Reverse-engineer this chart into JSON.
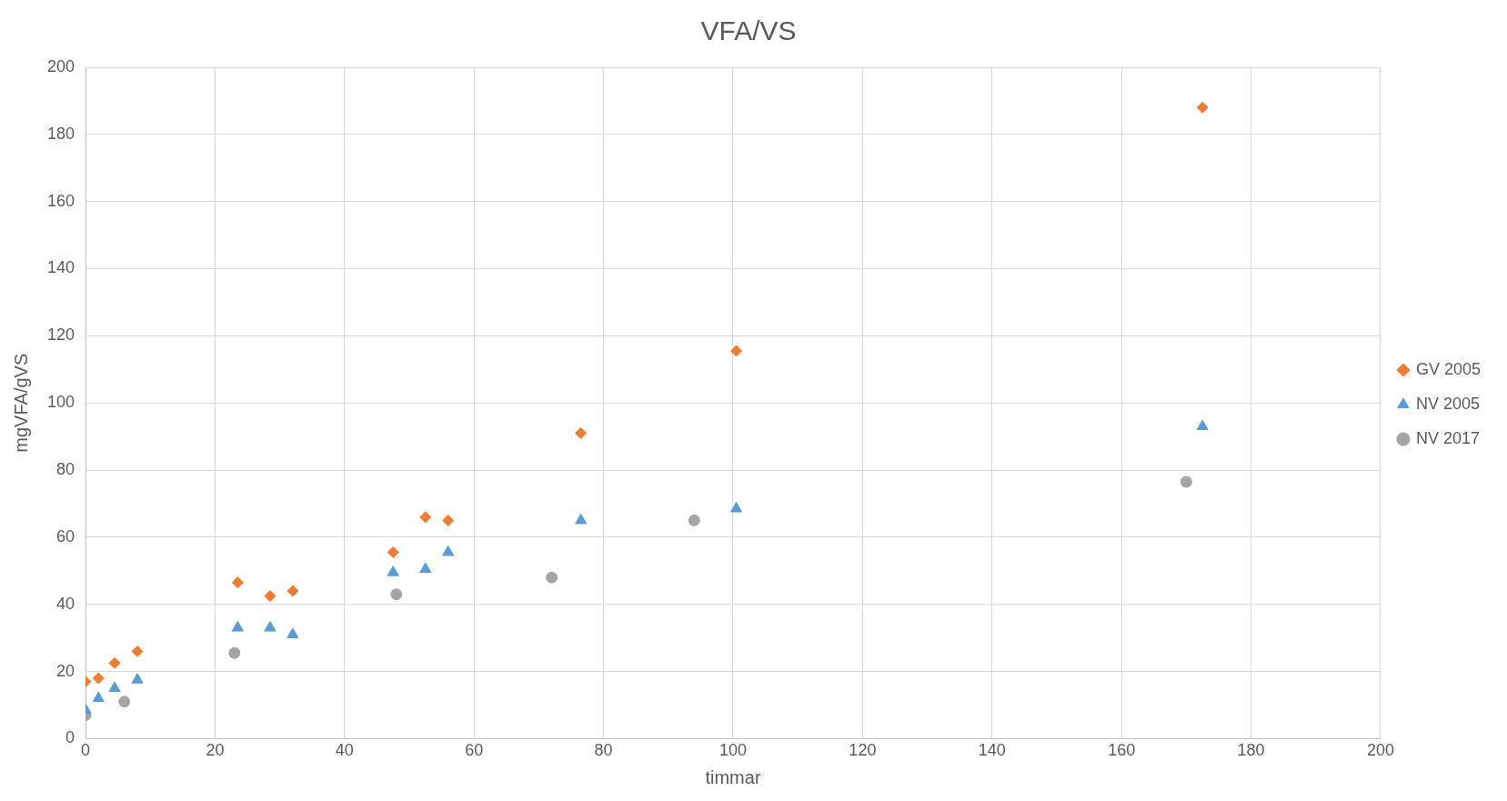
{
  "chart_data": {
    "type": "scatter",
    "title": "VFA/VS",
    "xlabel": "timmar",
    "ylabel": "mgVFA/gVS",
    "xlim": [
      0,
      200
    ],
    "xticks": [
      0,
      20,
      40,
      60,
      80,
      100,
      120,
      140,
      160,
      180,
      200
    ],
    "ylim": [
      0,
      200
    ],
    "yticks": [
      0,
      20,
      40,
      60,
      80,
      100,
      120,
      140,
      160,
      180,
      200
    ],
    "grid": true,
    "legend": "right",
    "series": [
      {
        "name": "GV 2005",
        "color": "#ed7d31",
        "marker": "diamond",
        "x": [
          0,
          2,
          4.5,
          8,
          23.5,
          28.5,
          32,
          47.5,
          52.5,
          56,
          76.5,
          100.5,
          172.5
        ],
        "values": [
          17,
          18,
          22.5,
          26,
          46.5,
          42.5,
          44,
          55.5,
          66,
          65,
          91,
          115.5,
          188
        ]
      },
      {
        "name": "NV 2005",
        "color": "#5b9bd5",
        "marker": "triangle",
        "x": [
          0,
          2,
          4.5,
          8,
          23.5,
          28.5,
          32,
          47.5,
          52.5,
          56,
          76.5,
          100.5,
          172.5
        ],
        "values": [
          8.5,
          12,
          15,
          17.5,
          33,
          33,
          31,
          49.5,
          50.5,
          55.5,
          65,
          68.5,
          93
        ]
      },
      {
        "name": "NV 2017",
        "color": "#a5a5a5",
        "marker": "circle",
        "x": [
          0,
          6,
          23,
          48,
          72,
          94,
          170
        ],
        "values": [
          7,
          11,
          25.5,
          43,
          48,
          65,
          76.5
        ]
      }
    ]
  }
}
